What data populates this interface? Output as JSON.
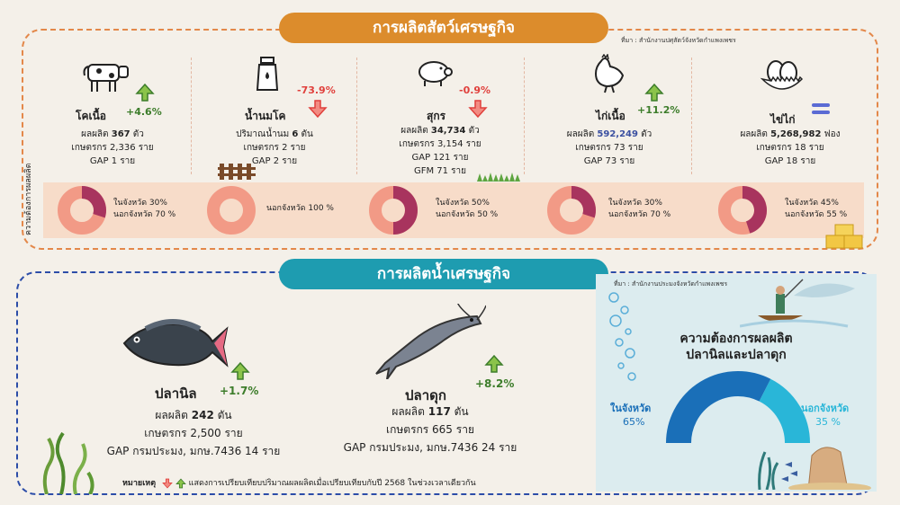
{
  "livestock": {
    "title": "การผลิตสัตว์เศรษฐกิจ",
    "source": "ที่มา : สำนักงานปศุสัตว์จังหวัดกำแพงเพชร",
    "demand_label": "ความต้องการผลผลิต",
    "items": [
      {
        "name": "โคเนื้อ",
        "change": "+4.6%",
        "direction": "up",
        "stats": [
          "ผลผลิต 367 ตัว",
          "เกษตรกร 2,336 ราย",
          "GAP 1 ราย"
        ],
        "demand": [
          "ในจังหวัด 30%",
          "นอกจังหวัด 70 %"
        ],
        "in_province_pct": 30
      },
      {
        "name": "น้ำนมโค",
        "change": "-73.9%",
        "direction": "down",
        "stats": [
          "ปริมาณน้ำนม 6 ตัน",
          "เกษตรกร 2 ราย",
          "GAP 2 ราย"
        ],
        "demand": [
          "นอกจังหวัด 100 %"
        ],
        "in_province_pct": 0
      },
      {
        "name": "สุกร",
        "change": "-0.9%",
        "direction": "down",
        "stats": [
          "ผลผลิต 34,734 ตัว",
          "เกษตรกร 3,154 ราย",
          "GAP 121 ราย",
          "GFM 71 ราย"
        ],
        "demand": [
          "ในจังหวัด 50%",
          "นอกจังหวัด 50 %"
        ],
        "in_province_pct": 50
      },
      {
        "name": "ไก่เนื้อ",
        "change": "+11.2%",
        "direction": "up",
        "stats": [
          "ผลผลิต 592,249 ตัว",
          "เกษตรกร 73 ราย",
          "GAP 73 ราย"
        ],
        "demand": [
          "ในจังหวัด 30%",
          "นอกจังหวัด 70 %"
        ],
        "in_province_pct": 30
      },
      {
        "name": "ไข่ไก่",
        "change": "",
        "direction": "equal",
        "stats": [
          "ผลผลิต 5,268,982 ฟอง",
          "เกษตรกร 18 ราย",
          "GAP 18 ราย"
        ],
        "demand": [
          "ในจังหวัด 45%",
          "นอกจังหวัด 55 %"
        ],
        "in_province_pct": 45
      }
    ]
  },
  "aquatic": {
    "title": "การผลิตน้ำเศรษฐกิจ",
    "source": "ที่มา : สำนักงานประมงจังหวัดกำแพงเพชร",
    "items": [
      {
        "name": "ปลานิล",
        "change": "+1.7%",
        "direction": "up",
        "stats": [
          "ผลผลิต 242 ตัน",
          "เกษตรกร 2,500 ราย",
          "GAP กรมประมง, มกษ.7436 14 ราย"
        ]
      },
      {
        "name": "ปลาดุก",
        "change": "+8.2%",
        "direction": "up",
        "stats": [
          "ผลผลิต 117 ตัน",
          "เกษตรกร 665 ราย",
          "GAP กรมประมง, มกษ.7436 24 ราย"
        ]
      }
    ],
    "demand": {
      "title_line1": "ความต้องการผลผลิต",
      "title_line2": "ปลานิลและปลาดุก",
      "in_label": "ในจังหวัด",
      "in_value": "65%",
      "in_pct": 65,
      "out_label": "นอกจังหวัด",
      "out_value": "35 %"
    }
  },
  "note": {
    "label": "หมายเหตุ",
    "text": "แสดงการเปรียบเทียบปริมาณผลผลิตเมื่อเปรียบเทียบกับปี 2568 ในช่วงเวลาเดียวกัน"
  },
  "colors": {
    "livestock_accent": "#dc8c2c",
    "aquatic_accent": "#1e9cb0",
    "donut_outer": "#f29a86",
    "donut_inner": "#a8345e",
    "up_green": "#3d7d2b",
    "down_red": "#e0403c",
    "gauge_in": "#1a6fb8",
    "gauge_out": "#29b6d8"
  }
}
